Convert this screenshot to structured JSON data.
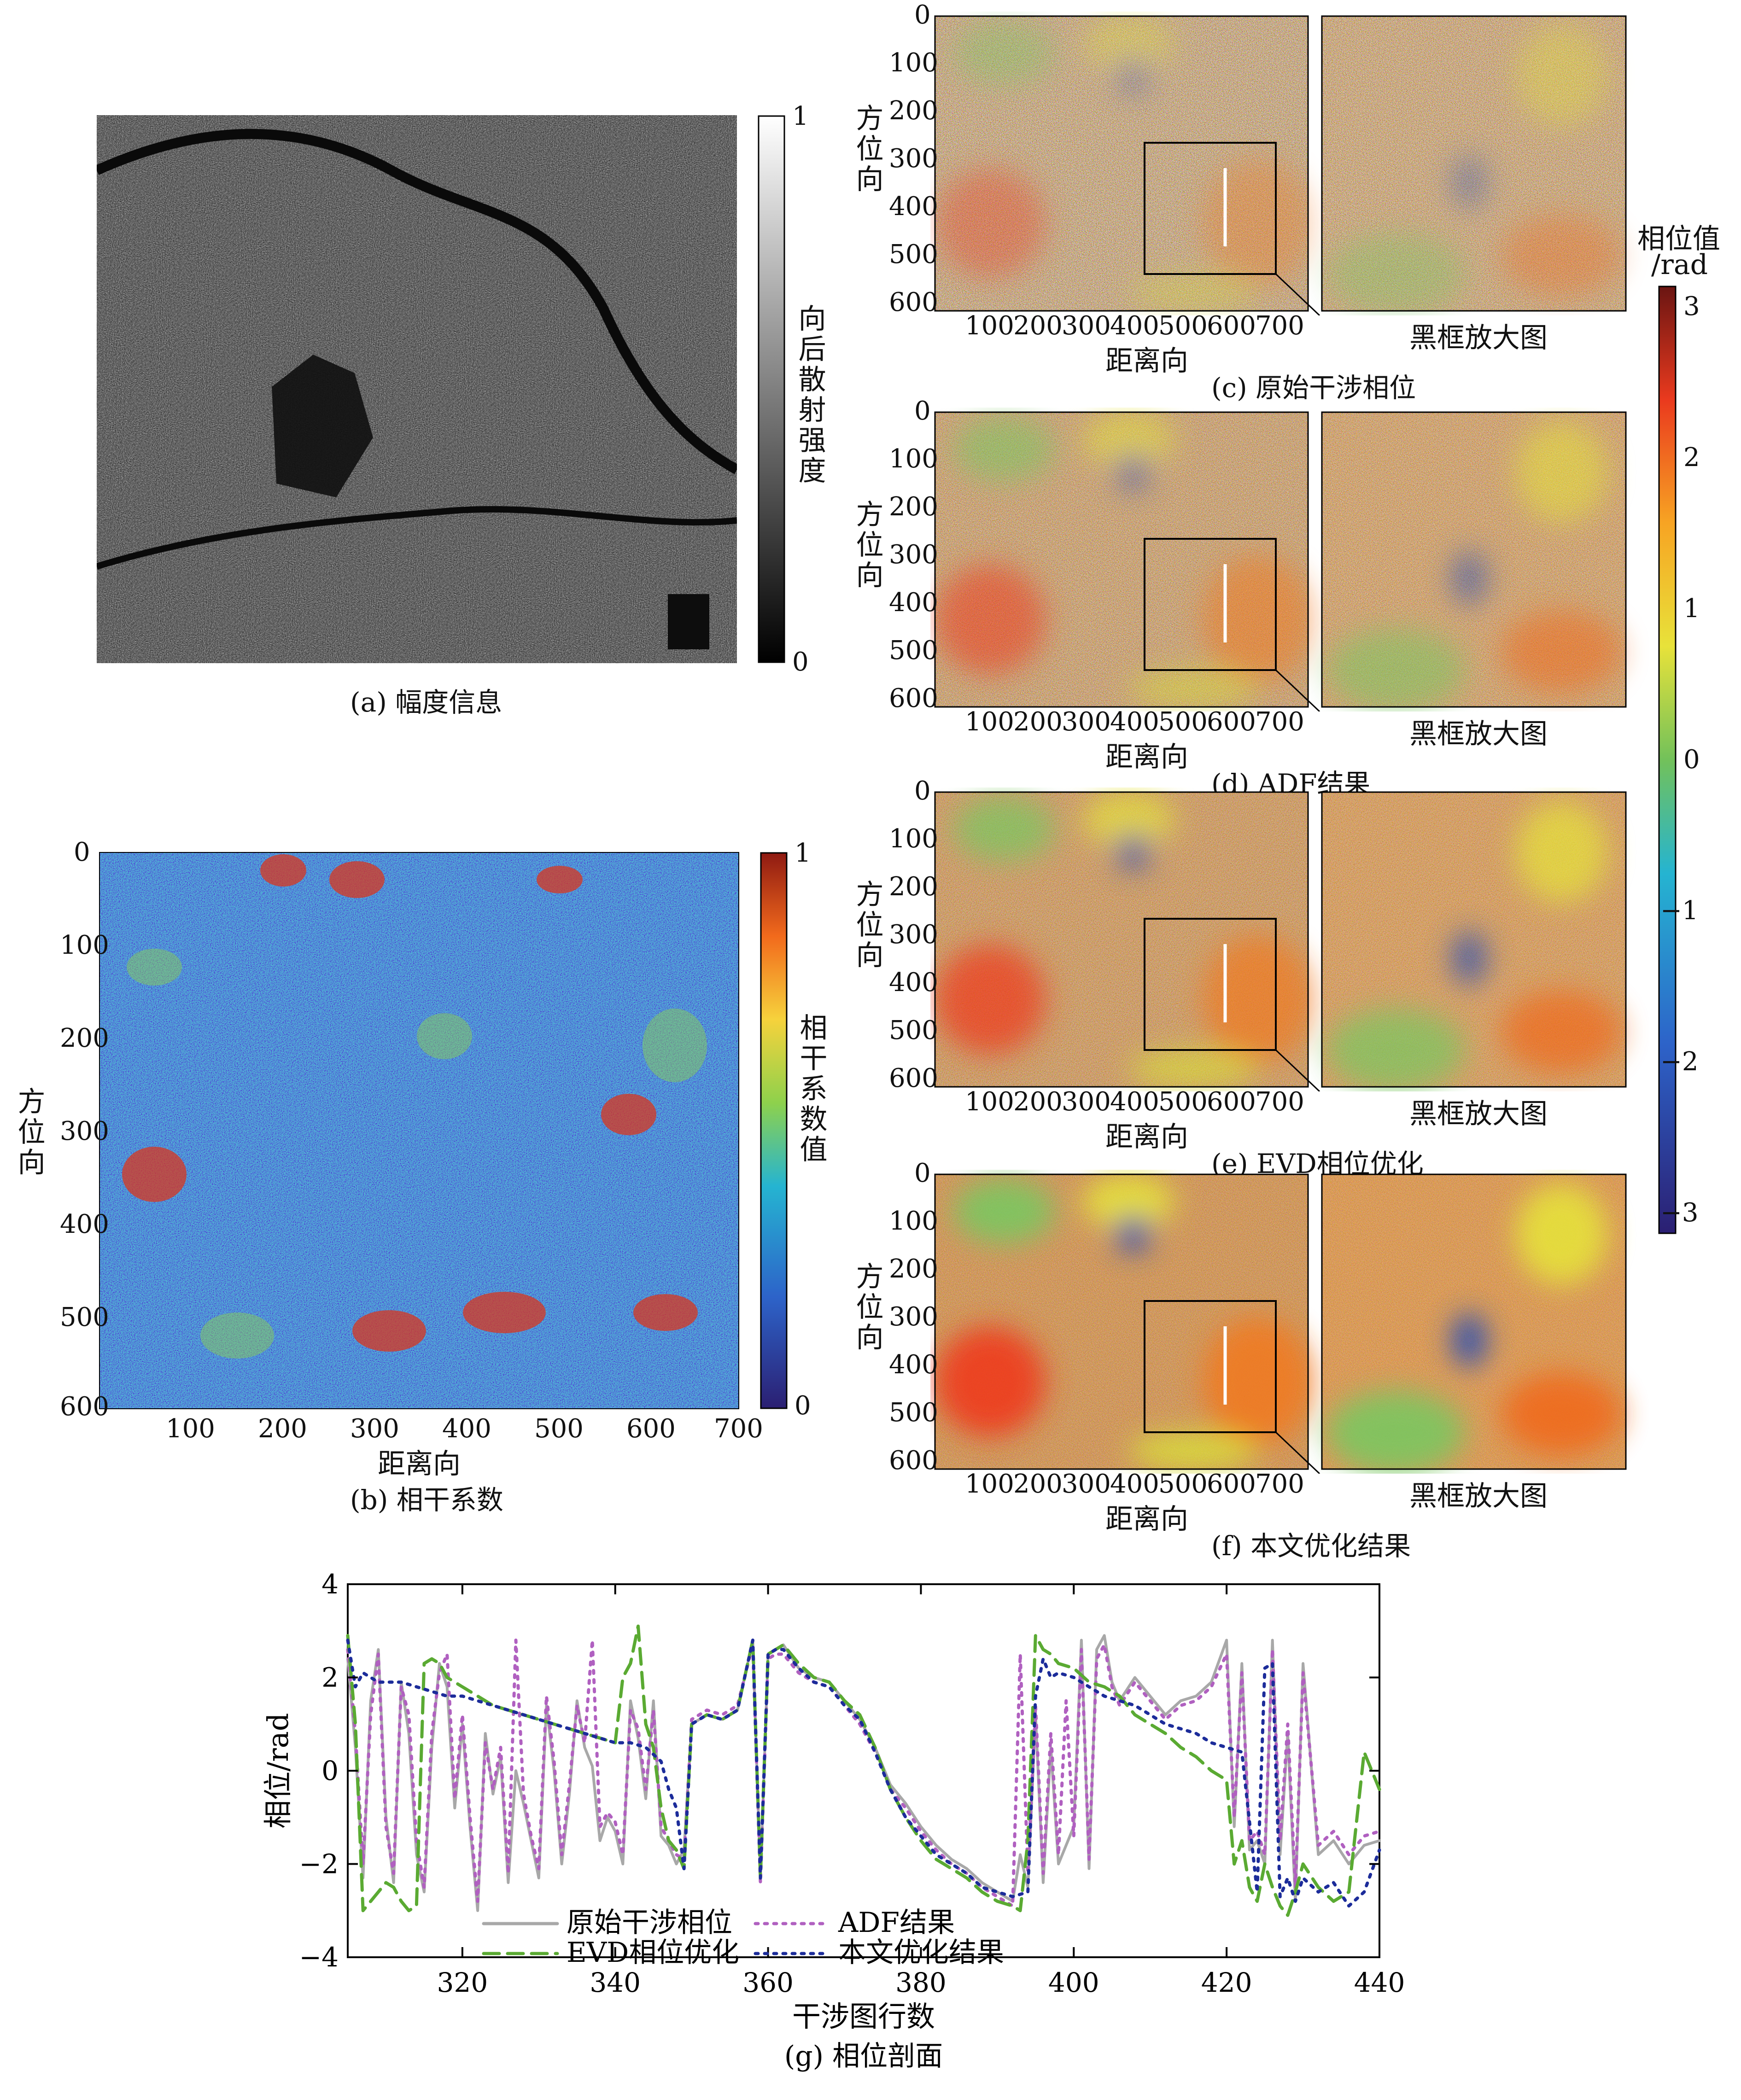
{
  "panels": {
    "a": {
      "caption": "(a) 幅度信息",
      "colorbar_label": "向后散射强度",
      "colorbar_ticks": [
        "1",
        "0"
      ]
    },
    "b": {
      "caption": "(b) 相干系数",
      "colorbar_label": "相干系数值",
      "colorbar_ticks": [
        "1",
        "0"
      ],
      "xlabel": "距离向",
      "ylabel": "方位向",
      "xticks": [
        "100",
        "200",
        "300",
        "400",
        "500",
        "600",
        "700"
      ],
      "yticks": [
        "0",
        "100",
        "200",
        "300",
        "400",
        "500",
        "600"
      ]
    },
    "phase": [
      {
        "caption": "(c) 原始干涉相位"
      },
      {
        "caption": "(d) ADF结果"
      },
      {
        "caption": "(e) EVD相位优化"
      },
      {
        "caption": "(f) 本文优化结果"
      }
    ],
    "phase_axes": {
      "xlabel": "距离向",
      "ylabel": "方位向",
      "zoom_label": "黑框放大图",
      "xticks": [
        "100",
        "200",
        "300",
        "400",
        "500",
        "600",
        "700"
      ],
      "yticks": [
        "0",
        "100",
        "200",
        "300",
        "400",
        "500",
        "600"
      ]
    },
    "phase_colorbar": {
      "label_line1": "相位值",
      "label_line2": "/rad",
      "ticks": [
        "3",
        "2",
        "1",
        "0",
        "−1",
        "−2",
        "−3"
      ]
    }
  },
  "chart_data": {
    "type": "line",
    "caption": "(g) 相位剖面",
    "xlabel": "干涉图行数",
    "ylabel": "相位/rad",
    "xlim": [
      305,
      440
    ],
    "ylim": [
      -4,
      4
    ],
    "xticks": [
      320,
      340,
      360,
      380,
      400,
      420,
      440
    ],
    "yticks": [
      -4,
      -2,
      0,
      2,
      4
    ],
    "legend": "bottom-center",
    "series": [
      {
        "name": "原始干涉相位",
        "color": "#a8a8a8",
        "style": "solid",
        "x": [
          305,
          306,
          307,
          308,
          309,
          310,
          311,
          312,
          313,
          314,
          315,
          316,
          317,
          318,
          319,
          320,
          321,
          322,
          323,
          324,
          325,
          326,
          327,
          328,
          329,
          330,
          331,
          332,
          333,
          334,
          335,
          336,
          337,
          338,
          339,
          340,
          341,
          342,
          343,
          344,
          345,
          346,
          347,
          348,
          349,
          350,
          352,
          354,
          356,
          358,
          359,
          360,
          361,
          362,
          364,
          366,
          368,
          370,
          372,
          374,
          376,
          378,
          380,
          382,
          384,
          386,
          388,
          390,
          392,
          393,
          394,
          395,
          396,
          397,
          398,
          399,
          400,
          401,
          402,
          403,
          404,
          405,
          406,
          408,
          410,
          412,
          414,
          416,
          418,
          420,
          421,
          422,
          423,
          424,
          425,
          426,
          427,
          428,
          429,
          430,
          432,
          434,
          436,
          438,
          440
        ],
        "y": [
          2.4,
          0.5,
          -2.3,
          1.5,
          2.6,
          -1.0,
          -2.4,
          1.9,
          0.8,
          -1.8,
          -2.6,
          0.5,
          2.3,
          1.8,
          -0.8,
          1.0,
          -1.2,
          -3.0,
          0.8,
          -0.5,
          0.3,
          -2.4,
          0.0,
          -0.7,
          -1.5,
          -2.3,
          1.4,
          0.0,
          -2.0,
          -0.5,
          1.5,
          0.5,
          0.1,
          -1.5,
          -1.0,
          -1.3,
          -2.0,
          1.5,
          0.7,
          -0.6,
          1.5,
          -1.4,
          -1.6,
          -2.0,
          -1.7,
          1.0,
          1.2,
          1.1,
          1.3,
          2.8,
          -2.3,
          2.5,
          2.6,
          2.7,
          2.2,
          2.0,
          1.9,
          1.5,
          1.1,
          0.5,
          -0.3,
          -0.7,
          -1.2,
          -1.6,
          -1.9,
          -2.1,
          -2.4,
          -2.6,
          -2.8,
          -1.8,
          -2.5,
          1.2,
          -2.4,
          0.5,
          -2.0,
          -1.6,
          -1.2,
          2.8,
          -2.1,
          2.6,
          2.9,
          1.9,
          1.5,
          2.0,
          1.6,
          1.2,
          1.5,
          1.6,
          1.9,
          2.8,
          -1.2,
          2.3,
          -1.7,
          -1.5,
          -2.0,
          2.8,
          -1.8,
          0.8,
          -2.8,
          2.3,
          -1.8,
          -1.5,
          -2.0,
          -1.6,
          -1.5
        ]
      },
      {
        "name": "ADF结果",
        "color": "#b060c0",
        "style": "dotted",
        "x": [
          305,
          306,
          307,
          308,
          309,
          310,
          311,
          312,
          313,
          314,
          315,
          316,
          317,
          318,
          319,
          320,
          321,
          322,
          323,
          324,
          325,
          326,
          327,
          328,
          329,
          330,
          331,
          332,
          333,
          334,
          335,
          336,
          337,
          338,
          339,
          340,
          341,
          342,
          343,
          344,
          345,
          346,
          347,
          348,
          349,
          350,
          352,
          354,
          356,
          358,
          359,
          360,
          361,
          362,
          364,
          366,
          368,
          370,
          372,
          374,
          376,
          378,
          380,
          382,
          384,
          386,
          388,
          390,
          392,
          393,
          394,
          395,
          396,
          397,
          398,
          399,
          400,
          401,
          402,
          403,
          404,
          405,
          406,
          408,
          410,
          412,
          414,
          416,
          418,
          420,
          421,
          422,
          423,
          424,
          425,
          426,
          427,
          428,
          429,
          430,
          432,
          434,
          436,
          438,
          440
        ],
        "y": [
          2.6,
          0.8,
          -2.0,
          1.2,
          2.5,
          -1.2,
          -2.2,
          1.8,
          1.2,
          -1.5,
          -2.5,
          0.8,
          2.1,
          2.5,
          -0.6,
          1.2,
          -1.0,
          -2.8,
          0.6,
          -0.4,
          0.5,
          -2.2,
          2.8,
          -0.5,
          -1.4,
          -2.1,
          1.6,
          0.2,
          -1.8,
          -0.3,
          1.4,
          0.6,
          2.8,
          -1.2,
          -0.9,
          -1.1,
          -1.8,
          1.3,
          0.9,
          -0.4,
          1.3,
          -1.2,
          -1.5,
          -1.8,
          -1.9,
          1.1,
          1.3,
          1.2,
          1.4,
          2.7,
          -2.4,
          2.4,
          2.5,
          2.5,
          2.1,
          1.9,
          1.8,
          1.4,
          1.0,
          0.4,
          -0.4,
          -0.8,
          -1.3,
          -1.7,
          -2.0,
          -2.2,
          -2.5,
          -2.7,
          -2.9,
          2.5,
          -2.2,
          1.4,
          -2.2,
          0.8,
          -1.8,
          1.5,
          -1.4,
          2.6,
          -1.9,
          2.4,
          2.7,
          1.8,
          1.4,
          1.9,
          1.5,
          1.1,
          1.4,
          1.5,
          1.8,
          2.5,
          -1.0,
          2.1,
          -1.5,
          -1.3,
          -1.8,
          2.6,
          -1.5,
          1.0,
          -2.5,
          2.1,
          -1.6,
          -1.3,
          -1.8,
          -1.4,
          -1.3
        ]
      },
      {
        "name": "EVD相位优化",
        "color": "#5aaa32",
        "style": "dashed",
        "x": [
          305,
          306,
          307,
          308,
          309,
          310,
          311,
          312,
          313,
          314,
          315,
          316,
          317,
          318,
          320,
          322,
          324,
          326,
          328,
          330,
          332,
          334,
          336,
          338,
          340,
          341,
          342,
          343,
          344,
          345,
          346,
          347,
          348,
          349,
          350,
          352,
          354,
          356,
          358,
          359,
          360,
          361,
          362,
          364,
          366,
          368,
          370,
          372,
          374,
          376,
          378,
          380,
          382,
          384,
          386,
          388,
          390,
          392,
          393,
          394,
          395,
          396,
          397,
          398,
          400,
          402,
          404,
          406,
          408,
          410,
          412,
          414,
          416,
          418,
          420,
          421,
          422,
          423,
          424,
          425,
          426,
          427,
          428,
          429,
          430,
          432,
          434,
          436,
          438,
          440
        ],
        "y": [
          2.9,
          1.0,
          -3.0,
          -2.8,
          -2.6,
          -2.4,
          -2.5,
          -2.8,
          -3.0,
          -2.9,
          2.3,
          2.4,
          2.3,
          2.0,
          1.8,
          1.6,
          1.4,
          1.3,
          1.2,
          1.1,
          1.0,
          0.9,
          0.8,
          0.7,
          0.6,
          2.0,
          2.3,
          3.1,
          1.0,
          0.5,
          -0.8,
          -1.5,
          -1.7,
          -2.1,
          1.0,
          1.2,
          1.1,
          1.3,
          2.8,
          -2.3,
          2.5,
          2.6,
          2.7,
          2.3,
          2.0,
          1.9,
          1.5,
          1.2,
          0.5,
          -0.4,
          -1.0,
          -1.5,
          -1.9,
          -2.1,
          -2.3,
          -2.6,
          -2.8,
          -2.9,
          -3.0,
          -1.5,
          2.9,
          2.6,
          2.5,
          2.3,
          2.2,
          1.9,
          1.8,
          1.6,
          1.2,
          1.0,
          0.8,
          0.5,
          0.3,
          0.0,
          -0.2,
          -2.0,
          -1.5,
          -2.5,
          -2.8,
          -2.0,
          -2.5,
          -2.9,
          -3.1,
          -2.6,
          -2.0,
          -2.5,
          -2.8,
          -2.6,
          0.4,
          -0.4
        ]
      },
      {
        "name": "本文优化结果",
        "color": "#1c2c9a",
        "style": "dotted",
        "x": [
          305,
          306,
          307,
          308,
          309,
          310,
          312,
          314,
          316,
          318,
          320,
          322,
          324,
          326,
          328,
          330,
          332,
          334,
          336,
          338,
          340,
          342,
          344,
          346,
          347,
          348,
          349,
          350,
          352,
          354,
          356,
          358,
          359,
          360,
          361,
          362,
          364,
          366,
          368,
          370,
          372,
          374,
          376,
          378,
          380,
          382,
          384,
          386,
          388,
          390,
          392,
          394,
          395,
          396,
          397,
          398,
          400,
          402,
          404,
          406,
          408,
          410,
          412,
          414,
          416,
          418,
          420,
          422,
          424,
          425,
          426,
          427,
          428,
          429,
          430,
          432,
          434,
          436,
          438,
          440
        ],
        "y": [
          2.8,
          1.8,
          2.1,
          2.0,
          1.9,
          1.9,
          1.9,
          1.8,
          1.7,
          1.6,
          1.6,
          1.5,
          1.4,
          1.3,
          1.2,
          1.1,
          1.0,
          0.9,
          0.8,
          0.7,
          0.6,
          0.6,
          0.5,
          0.2,
          -0.4,
          -0.8,
          -2.1,
          1.0,
          1.2,
          1.1,
          1.3,
          2.8,
          -2.3,
          2.5,
          2.6,
          2.6,
          2.2,
          1.9,
          1.8,
          1.4,
          1.1,
          0.4,
          -0.4,
          -1.0,
          -1.4,
          -1.8,
          -2.0,
          -2.2,
          -2.5,
          -2.6,
          -2.7,
          -2.6,
          1.6,
          2.4,
          2.0,
          2.1,
          2.0,
          1.8,
          1.6,
          1.5,
          1.4,
          1.2,
          1.0,
          0.9,
          0.8,
          0.6,
          0.5,
          0.4,
          -2.6,
          2.2,
          2.3,
          -2.7,
          -2.3,
          -2.8,
          -2.3,
          -2.6,
          -2.4,
          -2.9,
          -2.6,
          -1.7
        ]
      }
    ]
  }
}
